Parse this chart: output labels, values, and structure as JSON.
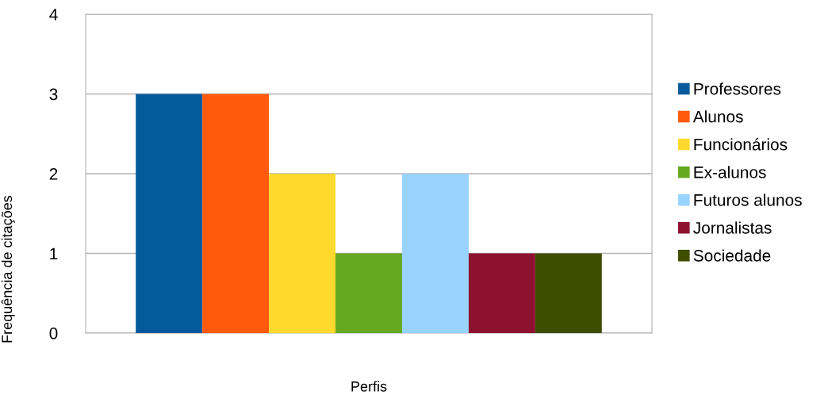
{
  "chart_data": {
    "type": "bar",
    "xlabel": "Perfis",
    "ylabel": "Frequência de citações",
    "categories": [
      null
    ],
    "series": [
      {
        "name": "Professores",
        "color": "#045a9a",
        "values": [
          3
        ]
      },
      {
        "name": "Alunos",
        "color": "#ff5a0e",
        "values": [
          3
        ]
      },
      {
        "name": "Funcionários",
        "color": "#ffd92d",
        "values": [
          2
        ]
      },
      {
        "name": "Ex-alunos",
        "color": "#66a820",
        "values": [
          1
        ]
      },
      {
        "name": "Futuros alunos",
        "color": "#99d3ff",
        "values": [
          2
        ]
      },
      {
        "name": "Jornalistas",
        "color": "#8e1230",
        "values": [
          1
        ]
      },
      {
        "name": "Sociedade",
        "color": "#3f4d00",
        "values": [
          1
        ]
      }
    ],
    "ylim": [
      0,
      4
    ],
    "yticks": [
      0,
      1,
      2,
      3,
      4
    ],
    "grid": "y",
    "legend": "right"
  }
}
